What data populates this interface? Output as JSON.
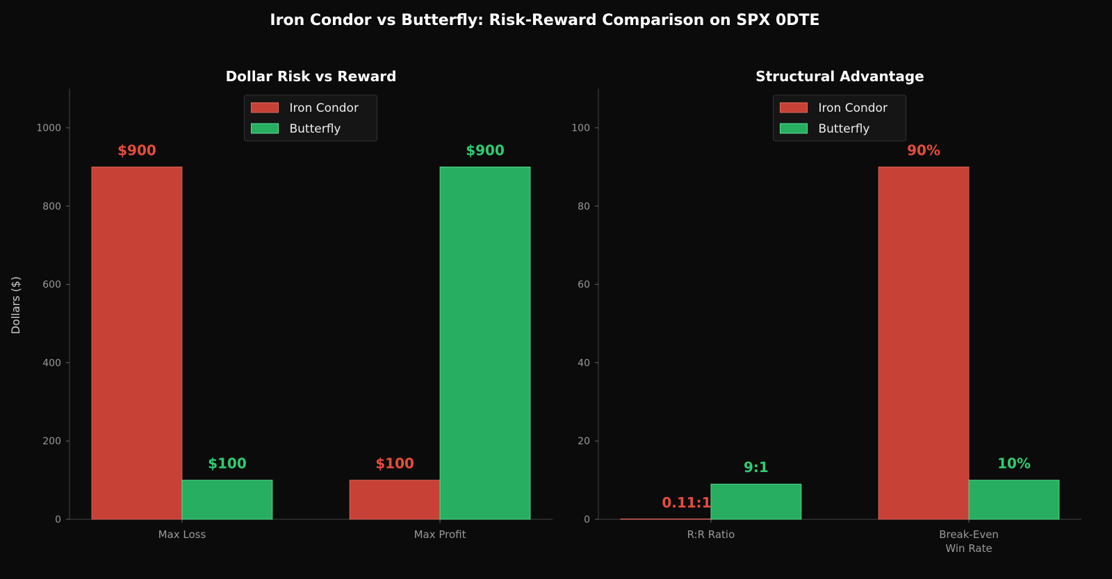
{
  "title": "Iron Condor vs Butterfly: Risk-Reward Comparison on SPX 0DTE",
  "colors": {
    "iron_condor": "#c84136",
    "butterfly": "#27ae60",
    "iron_condor_label": "#e74c3c",
    "butterfly_label": "#2ecc71"
  },
  "chart_data": [
    {
      "type": "bar",
      "title": "Dollar Risk vs Reward",
      "xlabel": "",
      "ylabel": "Dollars ($)",
      "ylim": [
        0,
        1100
      ],
      "yticks": [
        0,
        200,
        400,
        600,
        800,
        1000
      ],
      "categories": [
        "Max Loss",
        "Max Profit"
      ],
      "legend": "top-center",
      "series": [
        {
          "name": "Iron Condor",
          "values": [
            900,
            100
          ],
          "labels": [
            "$900",
            "$100"
          ]
        },
        {
          "name": "Butterfly",
          "values": [
            100,
            900
          ],
          "labels": [
            "$100",
            "$900"
          ]
        }
      ]
    },
    {
      "type": "bar",
      "title": "Structural Advantage",
      "xlabel": "",
      "ylabel": "",
      "ylim": [
        0,
        110
      ],
      "yticks": [
        0,
        20,
        40,
        60,
        80,
        100
      ],
      "categories": [
        "R:R Ratio",
        "Break-Even\nWin Rate"
      ],
      "legend": "top-center",
      "series": [
        {
          "name": "Iron Condor",
          "values": [
            0.11,
            90
          ],
          "labels": [
            "0.11:1",
            "90%"
          ]
        },
        {
          "name": "Butterfly",
          "values": [
            9,
            10
          ],
          "labels": [
            "9:1",
            "10%"
          ]
        }
      ]
    }
  ]
}
